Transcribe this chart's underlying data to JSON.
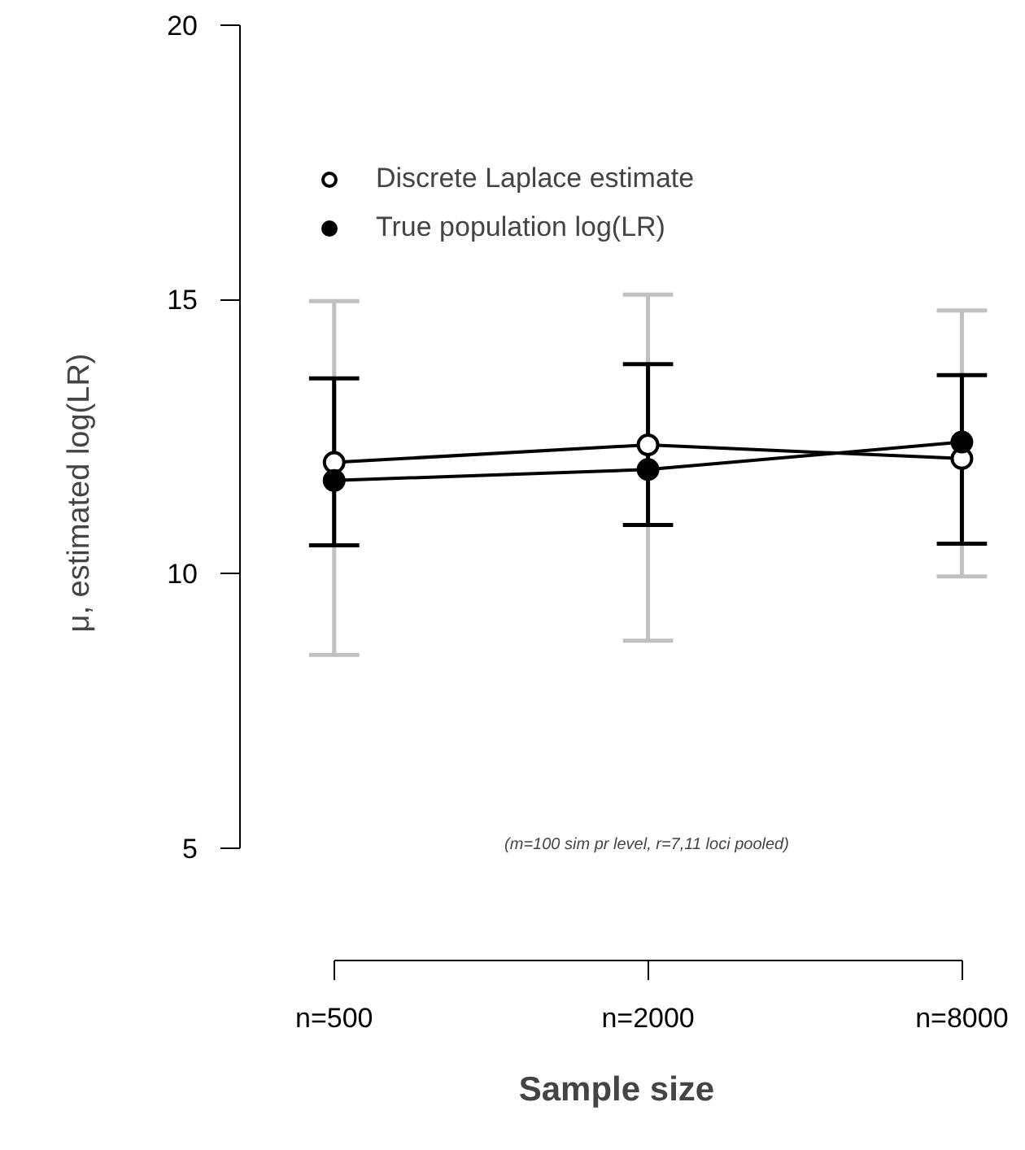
{
  "chart_data": {
    "type": "line",
    "xlabel": "Sample size",
    "ylabel": "μ, estimated log(LR)",
    "categories": [
      "n=500",
      "n=2000",
      "n=8000"
    ],
    "series": [
      {
        "name": "Discrete Laplace estimate",
        "color": "#000000",
        "values": [
          12.03,
          12.35,
          12.1
        ],
        "errors": [
          [
            10.52,
            13.56
          ],
          [
            10.89,
            13.82
          ],
          [
            10.55,
            13.62
          ]
        ]
      },
      {
        "name": "True population log(LR)",
        "color": "#000000",
        "values": [
          11.7,
          11.9,
          12.4
        ],
        "errors": [
          [
            8.52,
            14.97
          ],
          [
            8.78,
            15.09
          ],
          [
            9.95,
            14.8
          ]
        ]
      }
    ],
    "ylim": [
      2.95,
      20
    ],
    "yticks": [
      5,
      10,
      15,
      20
    ],
    "grid": false,
    "legend": "top left",
    "marker": "circle",
    "line_style": "solid",
    "annotations": [
      "(m=100 sim pr level, r=7,11 loci pooled)"
    ]
  }
}
